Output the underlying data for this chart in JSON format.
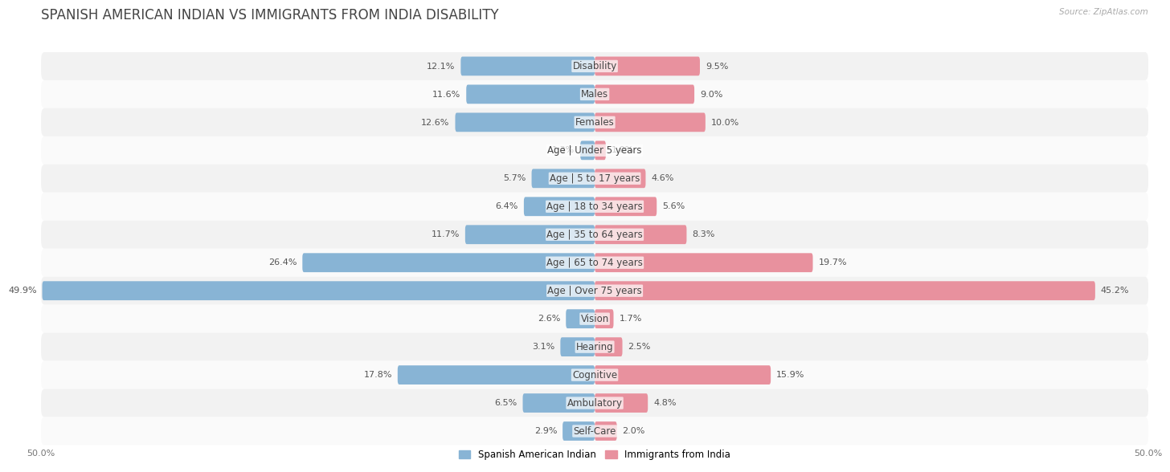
{
  "title": "Spanish American Indian vs Immigrants from India Disability",
  "title_upper": "SPANISH AMERICAN INDIAN VS IMMIGRANTS FROM INDIA DISABILITY",
  "source": "Source: ZipAtlas.com",
  "categories": [
    "Disability",
    "Males",
    "Females",
    "Age | Under 5 years",
    "Age | 5 to 17 years",
    "Age | 18 to 34 years",
    "Age | 35 to 64 years",
    "Age | 65 to 74 years",
    "Age | Over 75 years",
    "Vision",
    "Hearing",
    "Cognitive",
    "Ambulatory",
    "Self-Care"
  ],
  "left_values": [
    12.1,
    11.6,
    12.6,
    1.3,
    5.7,
    6.4,
    11.7,
    26.4,
    49.9,
    2.6,
    3.1,
    17.8,
    6.5,
    2.9
  ],
  "right_values": [
    9.5,
    9.0,
    10.0,
    1.0,
    4.6,
    5.6,
    8.3,
    19.7,
    45.2,
    1.7,
    2.5,
    15.9,
    4.8,
    2.0
  ],
  "left_color": "#88b4d5",
  "right_color": "#e8919e",
  "left_label": "Spanish American Indian",
  "right_label": "Immigrants from India",
  "axis_max": 50.0,
  "fig_bg": "#ffffff",
  "row_bg_even": "#f2f2f2",
  "row_bg_odd": "#fafafa",
  "title_fontsize": 12,
  "label_fontsize": 8.5,
  "value_fontsize": 8,
  "axis_fontsize": 8
}
